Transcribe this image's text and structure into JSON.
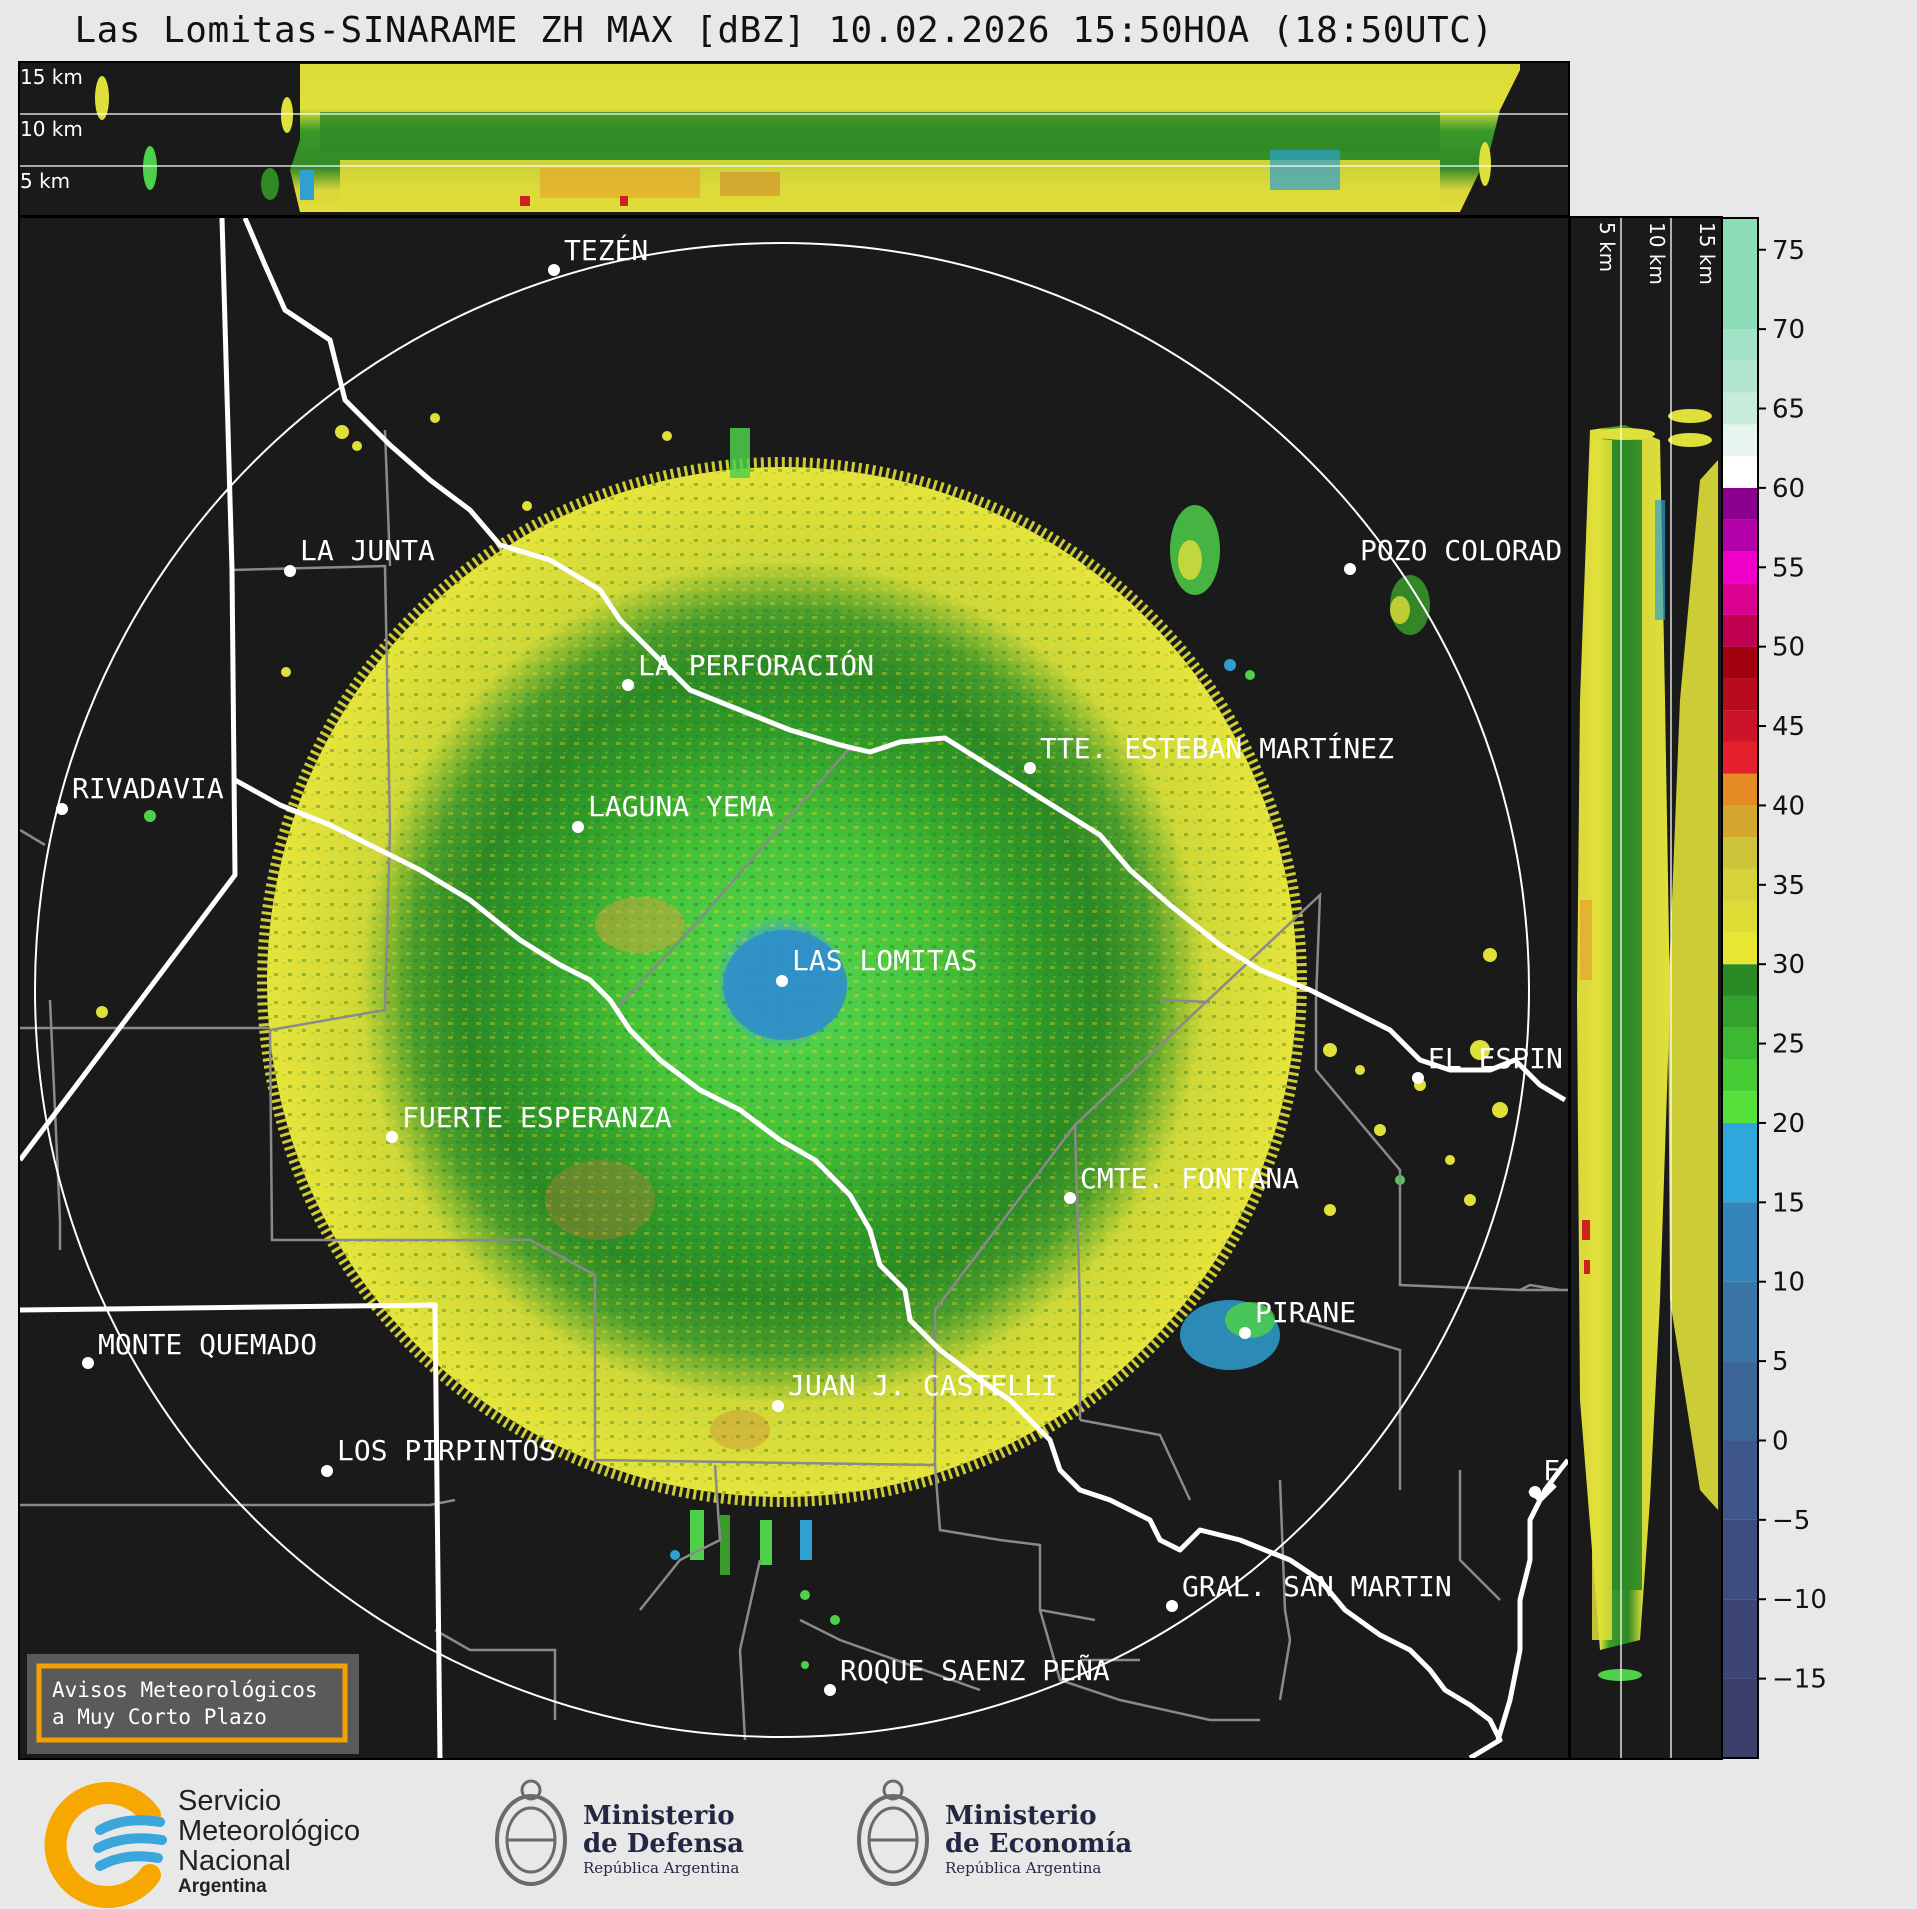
{
  "title": "Las Lomitas-SINARAME ZH MAX [dBZ] 10.02.2026 15:50HOA (18:50UTC)",
  "top_panel": {
    "labels": [
      "15 km",
      "10 km",
      "5 km"
    ]
  },
  "side_panel": {
    "labels": [
      "5 km",
      "10 km",
      "15 km"
    ]
  },
  "colorbar": {
    "ticks": [
      "75",
      "70",
      "65",
      "60",
      "55",
      "50",
      "45",
      "40",
      "35",
      "30",
      "25",
      "20",
      "15",
      "10",
      "5",
      "0",
      "−5",
      "−10",
      "−15"
    ]
  },
  "places": [
    {
      "name": "TEZÉN"
    },
    {
      "name": "LA JUNTA"
    },
    {
      "name": "POZO COLORAD"
    },
    {
      "name": "LA PERFORACIÓN"
    },
    {
      "name": "TTE. ESTEBAN MARTÍNEZ"
    },
    {
      "name": "RIVADAVIA"
    },
    {
      "name": "LAGUNA YEMA"
    },
    {
      "name": "LAS LOMITAS"
    },
    {
      "name": "EL ESPIN"
    },
    {
      "name": "FUERTE ESPERANZA"
    },
    {
      "name": "CMTE. FONTANA"
    },
    {
      "name": "MONTE QUEMADO"
    },
    {
      "name": "PIRANE"
    },
    {
      "name": "JUAN J. CASTELLI"
    },
    {
      "name": "LOS PIRPINTOS"
    },
    {
      "name": "F"
    },
    {
      "name": "GRAL. SAN MARTIN"
    },
    {
      "name": "ROQUE SAENZ PEÑA"
    }
  ],
  "notice": {
    "line1": "Avisos Meteorológicos",
    "line2": "a Muy Corto Plazo"
  },
  "logos": {
    "smn": {
      "line1": "Servicio",
      "line2": "Meteorológico",
      "line3": "Nacional",
      "line4": "Argentina"
    },
    "defensa": {
      "line1": "Ministerio",
      "line2": "de Defensa",
      "line3": "República Argentina"
    },
    "economia": {
      "line1": "Ministerio",
      "line2": "de Economía",
      "line3": "República Argentina"
    }
  },
  "colors": {
    "background": "#1a1a1a",
    "echo_yellow": "#e0e03a",
    "echo_green": "#3a9a2a",
    "echo_blue": "#2f90c8",
    "notice_border": "#f2a100"
  }
}
